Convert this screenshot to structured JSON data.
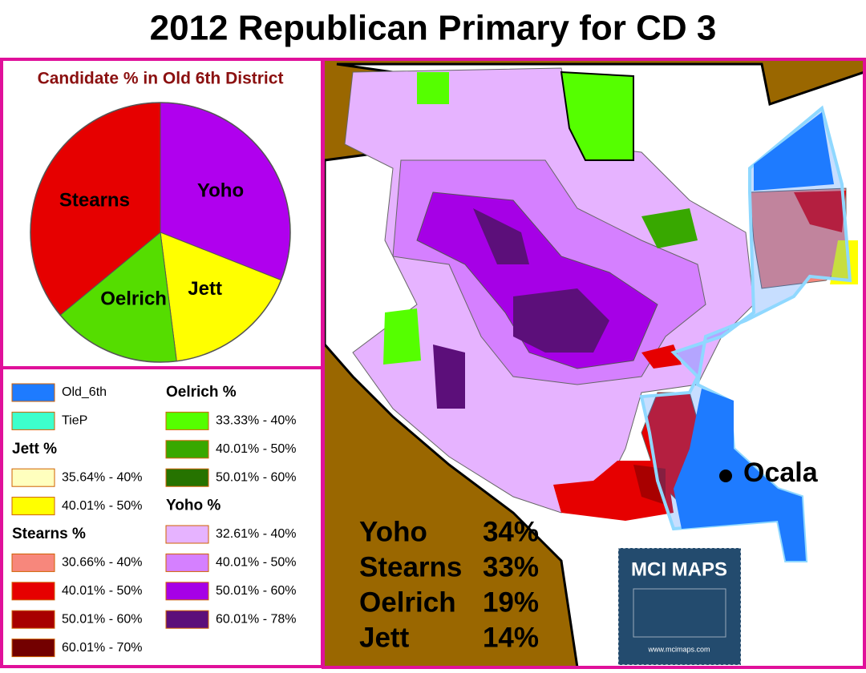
{
  "title": "2012 Republican Primary for CD 3",
  "chart_data": {
    "type": "pie",
    "title": "Candidate % in Old 6th District",
    "categories": [
      "Yoho",
      "Jett",
      "Oelrich",
      "Stearns"
    ],
    "values": [
      31,
      17,
      16,
      36
    ],
    "colors": [
      "#b000ee",
      "#ffff00",
      "#55dd00",
      "#e60000"
    ]
  },
  "legend": {
    "columns": [
      [
        {
          "label": "Old_6th",
          "color": "#1e7bff"
        },
        {
          "label": "TieP",
          "color": "#3dffcc"
        },
        {
          "heading": "Jett %"
        },
        {
          "label": "35.64% - 40%",
          "color": "#ffffbe"
        },
        {
          "label": "40.01% - 50%",
          "color": "#ffff00"
        },
        {
          "heading": "Stearns %"
        },
        {
          "label": "30.66% - 40%",
          "color": "#f7877c"
        },
        {
          "label": "40.01% - 50%",
          "color": "#e60000"
        },
        {
          "label": "50.01% - 60%",
          "color": "#a80000"
        },
        {
          "label": "60.01% - 70%",
          "color": "#730000"
        }
      ],
      [
        {
          "heading": "Oelrich %"
        },
        {
          "label": "33.33% - 40%",
          "color": "#55ff00"
        },
        {
          "label": "40.01% - 50%",
          "color": "#38a800"
        },
        {
          "label": "50.01% - 60%",
          "color": "#267300"
        },
        {
          "heading": "Yoho %"
        },
        {
          "label": "32.61% - 40%",
          "color": "#e6b3ff"
        },
        {
          "label": "40.01% - 50%",
          "color": "#d580ff"
        },
        {
          "label": "50.01% - 60%",
          "color": "#a600e6"
        },
        {
          "label": "60.01% - 78%",
          "color": "#5c0f7a"
        }
      ]
    ]
  },
  "results": [
    [
      "Yoho",
      "34%"
    ],
    [
      "Stearns",
      "33%"
    ],
    [
      "Oelrich",
      "19%"
    ],
    [
      "Jett",
      "14%"
    ]
  ],
  "map": {
    "city": "Ocala"
  },
  "logo": {
    "name": "MCI MAPS",
    "url": "www.mcimaps.com"
  }
}
